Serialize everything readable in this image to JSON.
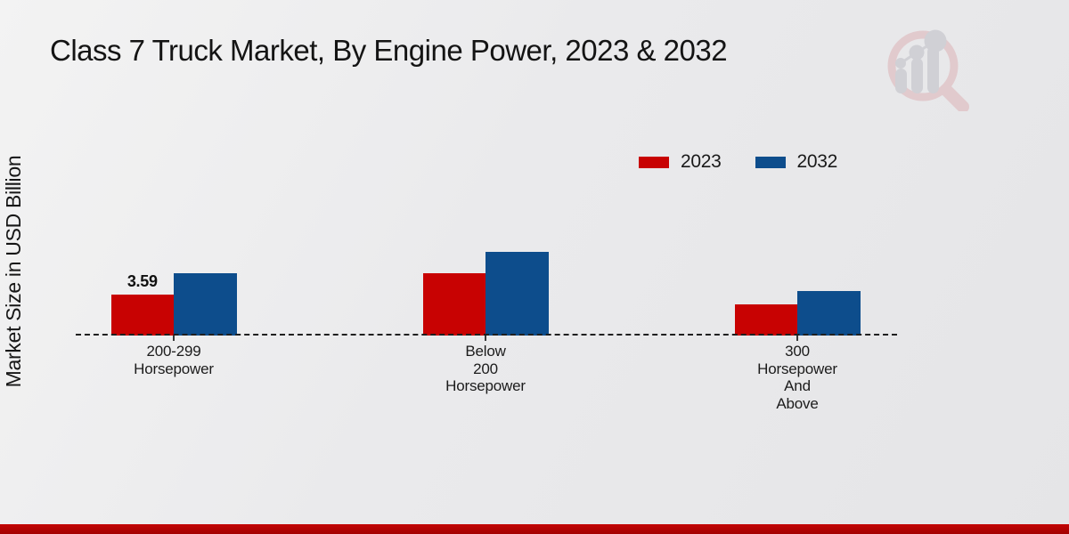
{
  "title": "Class 7 Truck Market, By Engine Power, 2023 & 2032",
  "y_axis": {
    "label": "Market Size in USD Billion"
  },
  "legend": {
    "items": [
      {
        "label": "2023",
        "color": "#c80202"
      },
      {
        "label": "2032",
        "color": "#0d4d8c"
      }
    ]
  },
  "chart_data": {
    "type": "bar",
    "title": "Class 7 Truck Market, By Engine Power, 2023 & 2032",
    "ylabel": "Market Size in USD Billion",
    "categories": [
      "200-299 Horsepower",
      "Below 200 Horsepower",
      "300 Horsepower And Above"
    ],
    "category_lines": [
      [
        "200-299",
        "Horsepower"
      ],
      [
        "Below",
        "200",
        "Horsepower"
      ],
      [
        "300",
        "Horsepower",
        "And",
        "Above"
      ]
    ],
    "series": [
      {
        "name": "2023",
        "color": "#c80202",
        "values": [
          3.59,
          5.46,
          2.73
        ]
      },
      {
        "name": "2032",
        "color": "#0d4d8c",
        "values": [
          5.46,
          7.34,
          3.9
        ]
      }
    ],
    "annotations": [
      {
        "series_index": 0,
        "category_index": 0,
        "text": "3.59"
      }
    ],
    "ylim": [
      0,
      8
    ],
    "grid": false,
    "legend_position": "upper right",
    "baseline_style": "dashed"
  },
  "footer": {
    "accent_color": "#b00000"
  }
}
